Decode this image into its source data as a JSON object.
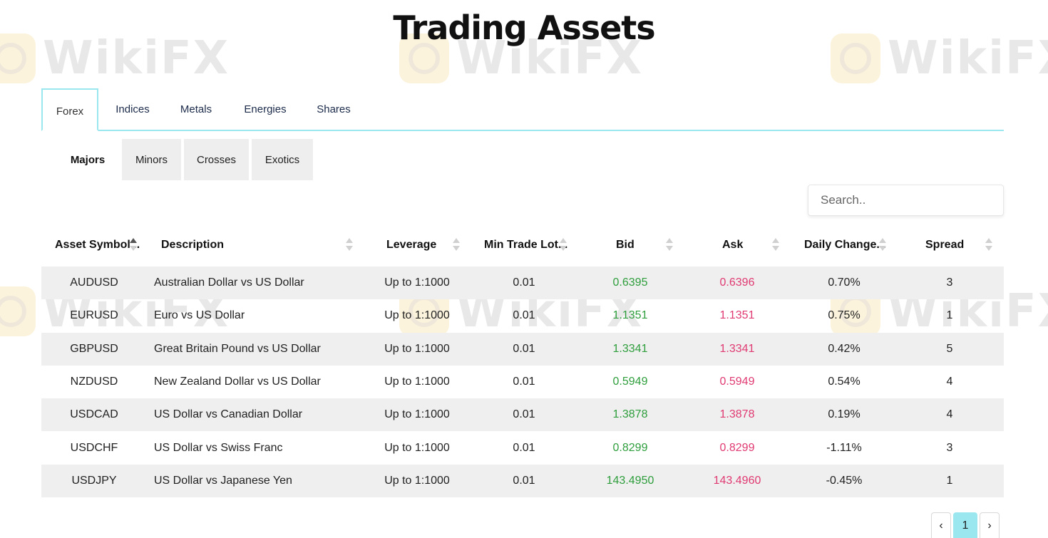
{
  "page": {
    "title": "Trading Assets",
    "watermark": "WikiFX"
  },
  "tabs": [
    "Forex",
    "Indices",
    "Metals",
    "Energies",
    "Shares"
  ],
  "subtabs": [
    "Majors",
    "Minors",
    "Crosses",
    "Exotics"
  ],
  "search": {
    "placeholder": "Search.."
  },
  "table": {
    "headers": [
      "Asset Symbol...",
      "Description",
      "Leverage",
      "Min Trade Lot...",
      "Bid",
      "Ask",
      "Daily Change...",
      "Spread"
    ],
    "rows": [
      [
        "AUDUSD",
        "Australian Dollar vs US Dollar",
        "Up to 1:1000",
        "0.01",
        "0.6395",
        "0.6396",
        "0.70%",
        "3"
      ],
      [
        "EURUSD",
        "Euro vs US Dollar",
        "Up to 1:1000",
        "0.01",
        "1.1351",
        "1.1351",
        "0.75%",
        "1"
      ],
      [
        "GBPUSD",
        "Great Britain Pound vs US Dollar",
        "Up to 1:1000",
        "0.01",
        "1.3341",
        "1.3341",
        "0.42%",
        "5"
      ],
      [
        "NZDUSD",
        "New Zealand Dollar vs US Dollar",
        "Up to 1:1000",
        "0.01",
        "0.5949",
        "0.5949",
        "0.54%",
        "4"
      ],
      [
        "USDCAD",
        "US Dollar vs Canadian Dollar",
        "Up to 1:1000",
        "0.01",
        "1.3878",
        "1.3878",
        "0.19%",
        "4"
      ],
      [
        "USDCHF",
        "US Dollar vs Swiss Franc",
        "Up to 1:1000",
        "0.01",
        "0.8299",
        "0.8299",
        "-1.11%",
        "3"
      ],
      [
        "USDJPY",
        "US Dollar vs Japanese Yen",
        "Up to 1:1000",
        "0.01",
        "143.4950",
        "143.4960",
        "-0.45%",
        "1"
      ]
    ]
  },
  "pagination": {
    "prev": "‹",
    "current": "1",
    "next": "›"
  },
  "colors": {
    "accent": "#9ae7ef",
    "bid": "#2e9e3c",
    "ask": "#e03a72"
  }
}
